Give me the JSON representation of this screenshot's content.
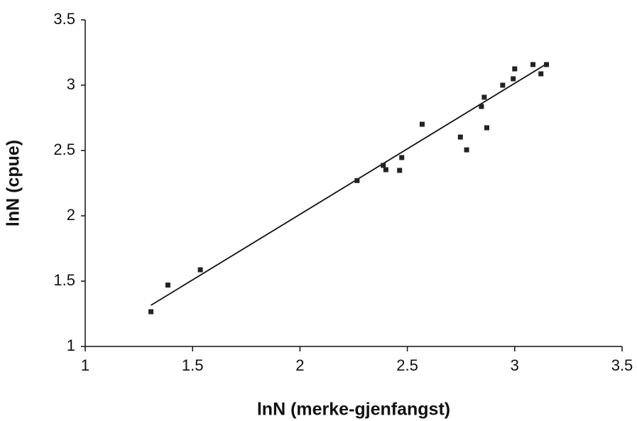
{
  "chart_data": {
    "type": "scatter",
    "x_label": "lnN (merke-gjenfangst)",
    "y_label": "lnN (cpue)",
    "x": [
      1.306,
      1.385,
      1.536,
      2.266,
      2.388,
      2.4,
      2.464,
      2.474,
      2.569,
      2.747,
      2.776,
      2.845,
      2.858,
      2.87,
      2.944,
      2.993,
      3.0,
      3.085,
      3.122,
      3.148
    ],
    "values": [
      1.266,
      1.47,
      1.587,
      2.27,
      2.386,
      2.353,
      2.348,
      2.446,
      2.701,
      2.603,
      2.505,
      2.837,
      2.908,
      2.674,
      3.0,
      3.049,
      3.125,
      3.158,
      3.087,
      3.158
    ],
    "color": "#222222",
    "trendline": {
      "x": [
        1.306,
        3.148
      ],
      "y": [
        1.315,
        3.163
      ],
      "color": "#111111"
    },
    "xlim": [
      1,
      3.5
    ],
    "xticks": [
      1,
      1.5,
      2,
      2.5,
      3,
      3.5
    ],
    "ylim": [
      1,
      3.5
    ],
    "yticks": [
      1,
      1.5,
      2,
      2.5,
      3,
      3.5
    ]
  }
}
